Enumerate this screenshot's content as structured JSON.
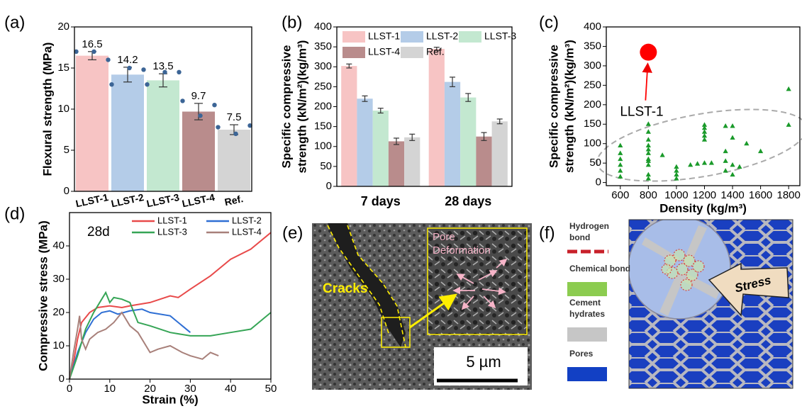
{
  "chart_data": [
    {
      "type": "bar",
      "label": "(a)",
      "ylabel": "Flexural strength (MPa)",
      "categories": [
        "LLST-1",
        "LLST-2",
        "LLST-3",
        "LLST-4",
        "Ref."
      ],
      "values": [
        16.5,
        14.2,
        13.5,
        9.7,
        7.5
      ],
      "errors": [
        0.5,
        0.9,
        0.8,
        1.0,
        0.6
      ],
      "points": [
        [
          17.0,
          17.0,
          16.0
        ],
        [
          13.0,
          15.0,
          14.8
        ],
        [
          13.0,
          14.5,
          14.5
        ],
        [
          11.0,
          9.2,
          10.5
        ],
        [
          7.8,
          7.0,
          8.0
        ]
      ],
      "colors": [
        "#f7c4c4",
        "#b4cce8",
        "#c3e8d0",
        "#b98c8c",
        "#d4d4d4"
      ],
      "point_color": "#3c6596",
      "ylim": [
        0,
        20
      ],
      "yticks": [
        0,
        5,
        10,
        15,
        20
      ]
    },
    {
      "type": "bar",
      "label": "(b)",
      "ylabel": [
        "Specific compressive",
        "strength (kN/m²)(kg/m³)"
      ],
      "categories": [
        "7 days",
        "28 days"
      ],
      "series": [
        {
          "name": "LLST-1",
          "color": "#f7c4c4",
          "values": [
            302,
            345
          ],
          "errors": [
            5,
            4
          ]
        },
        {
          "name": "LLST-2",
          "color": "#b4cce8",
          "values": [
            220,
            262
          ],
          "errors": [
            7,
            12
          ]
        },
        {
          "name": "LLST-3",
          "color": "#c3e8d0",
          "values": [
            190,
            223
          ],
          "errors": [
            6,
            10
          ]
        },
        {
          "name": "LLST-4",
          "color": "#b98c8c",
          "values": [
            113,
            125
          ],
          "errors": [
            8,
            10
          ]
        },
        {
          "name": "Ref.",
          "color": "#d4d4d4",
          "values": [
            123,
            163
          ],
          "errors": [
            8,
            6
          ]
        }
      ],
      "ylim": [
        0,
        400
      ],
      "yticks": [
        0,
        50,
        100,
        150,
        200,
        250,
        300,
        350,
        400
      ]
    },
    {
      "type": "scatter",
      "label": "(c)",
      "xlabel": "Density (kg/m³)",
      "ylabel": [
        "Specific compressive",
        "strength (kN/m²)(kg/m³)"
      ],
      "x": [
        600,
        600,
        600,
        600,
        600,
        600,
        800,
        800,
        800,
        800,
        800,
        800,
        800,
        800,
        800,
        800,
        800,
        900,
        1000,
        1000,
        1000,
        1000,
        1100,
        1150,
        1200,
        1200,
        1200,
        1200,
        1200,
        1200,
        1250,
        1350,
        1350,
        1350,
        1350,
        1400,
        1400,
        1400,
        1400,
        1450,
        1500,
        1600,
        1800,
        1800
      ],
      "y": [
        15,
        30,
        45,
        60,
        75,
        95,
        10,
        20,
        45,
        55,
        60,
        75,
        85,
        95,
        110,
        130,
        150,
        70,
        10,
        20,
        30,
        40,
        45,
        48,
        50,
        110,
        120,
        130,
        140,
        148,
        50,
        30,
        55,
        80,
        145,
        20,
        45,
        115,
        145,
        40,
        100,
        80,
        148,
        240
      ],
      "color": "#1a9a2a",
      "highlight": {
        "x": 800,
        "y": 335,
        "color": "#ff0000",
        "label": "LLST-1"
      },
      "xlim": [
        500,
        1880
      ],
      "ylim": [
        -8,
        400
      ],
      "xticks": [
        600,
        800,
        1000,
        1200,
        1400,
        1600,
        1800
      ],
      "yticks": [
        0,
        50,
        100,
        150,
        200,
        250,
        300,
        350,
        400
      ]
    },
    {
      "type": "line",
      "label": "(d)",
      "annotation": "28d",
      "xlabel": "Strain (%)",
      "ylabel": "Compressive stress (MPa)",
      "series": [
        {
          "name": "LLST-1",
          "color": "#e84a4a",
          "x": [
            0,
            1,
            2,
            3,
            5,
            7,
            10,
            13,
            15,
            20,
            25,
            27,
            30,
            35,
            40,
            45,
            50
          ],
          "y": [
            0,
            5,
            12,
            17,
            20,
            21.5,
            22,
            21.5,
            22,
            23,
            25,
            24.5,
            27,
            31,
            36,
            39,
            44
          ]
        },
        {
          "name": "LLST-2",
          "color": "#2f6fd4",
          "x": [
            0,
            2,
            4,
            6,
            8,
            10,
            12,
            15,
            18,
            20,
            25,
            28,
            30
          ],
          "y": [
            0,
            8,
            14,
            18,
            20,
            20.5,
            19.5,
            20.5,
            21,
            20,
            19,
            16,
            14
          ]
        },
        {
          "name": "LLST-3",
          "color": "#36a556",
          "x": [
            0,
            2,
            4,
            6,
            8,
            9,
            10,
            11,
            13,
            15,
            17,
            20,
            25,
            30,
            35,
            40,
            45,
            48,
            50
          ],
          "y": [
            0,
            7,
            15,
            20,
            24,
            26,
            23,
            24.5,
            24,
            23,
            17,
            16,
            14,
            13,
            13,
            14,
            15,
            18,
            20
          ]
        },
        {
          "name": "LLST-4",
          "color": "#a8807a",
          "x": [
            0,
            1,
            2,
            2.5,
            3,
            4,
            5,
            7,
            9,
            11,
            13,
            15,
            17,
            20,
            22,
            25,
            28,
            30,
            33,
            35,
            37
          ],
          "y": [
            0,
            8,
            15,
            19,
            12,
            9,
            12,
            14,
            15,
            17,
            20,
            16,
            14,
            8,
            9,
            10,
            8,
            7,
            6,
            8,
            7
          ]
        }
      ],
      "xlim": [
        0,
        50
      ],
      "ylim": [
        0,
        50
      ],
      "xticks": [
        0,
        10,
        20,
        30,
        40,
        50
      ],
      "yticks": [
        0,
        10,
        20,
        30,
        40
      ]
    }
  ],
  "panel_e": {
    "label": "(e)",
    "cracks": "Cracks",
    "inset": [
      "Pore",
      "Deformation"
    ],
    "scale": "5 µm"
  },
  "panel_f": {
    "label": "(f)",
    "stress": "Stress",
    "legend": [
      {
        "name": [
          "Hydrogen",
          "bond"
        ],
        "color": "#c8202a"
      },
      {
        "name": [
          "Chemical bond"
        ],
        "color": "#8ccc50"
      },
      {
        "name": [
          "Cement",
          "hydrates"
        ],
        "color": "#c6c6c6"
      },
      {
        "name": [
          "Pores"
        ],
        "color": "#1240c4"
      }
    ]
  }
}
